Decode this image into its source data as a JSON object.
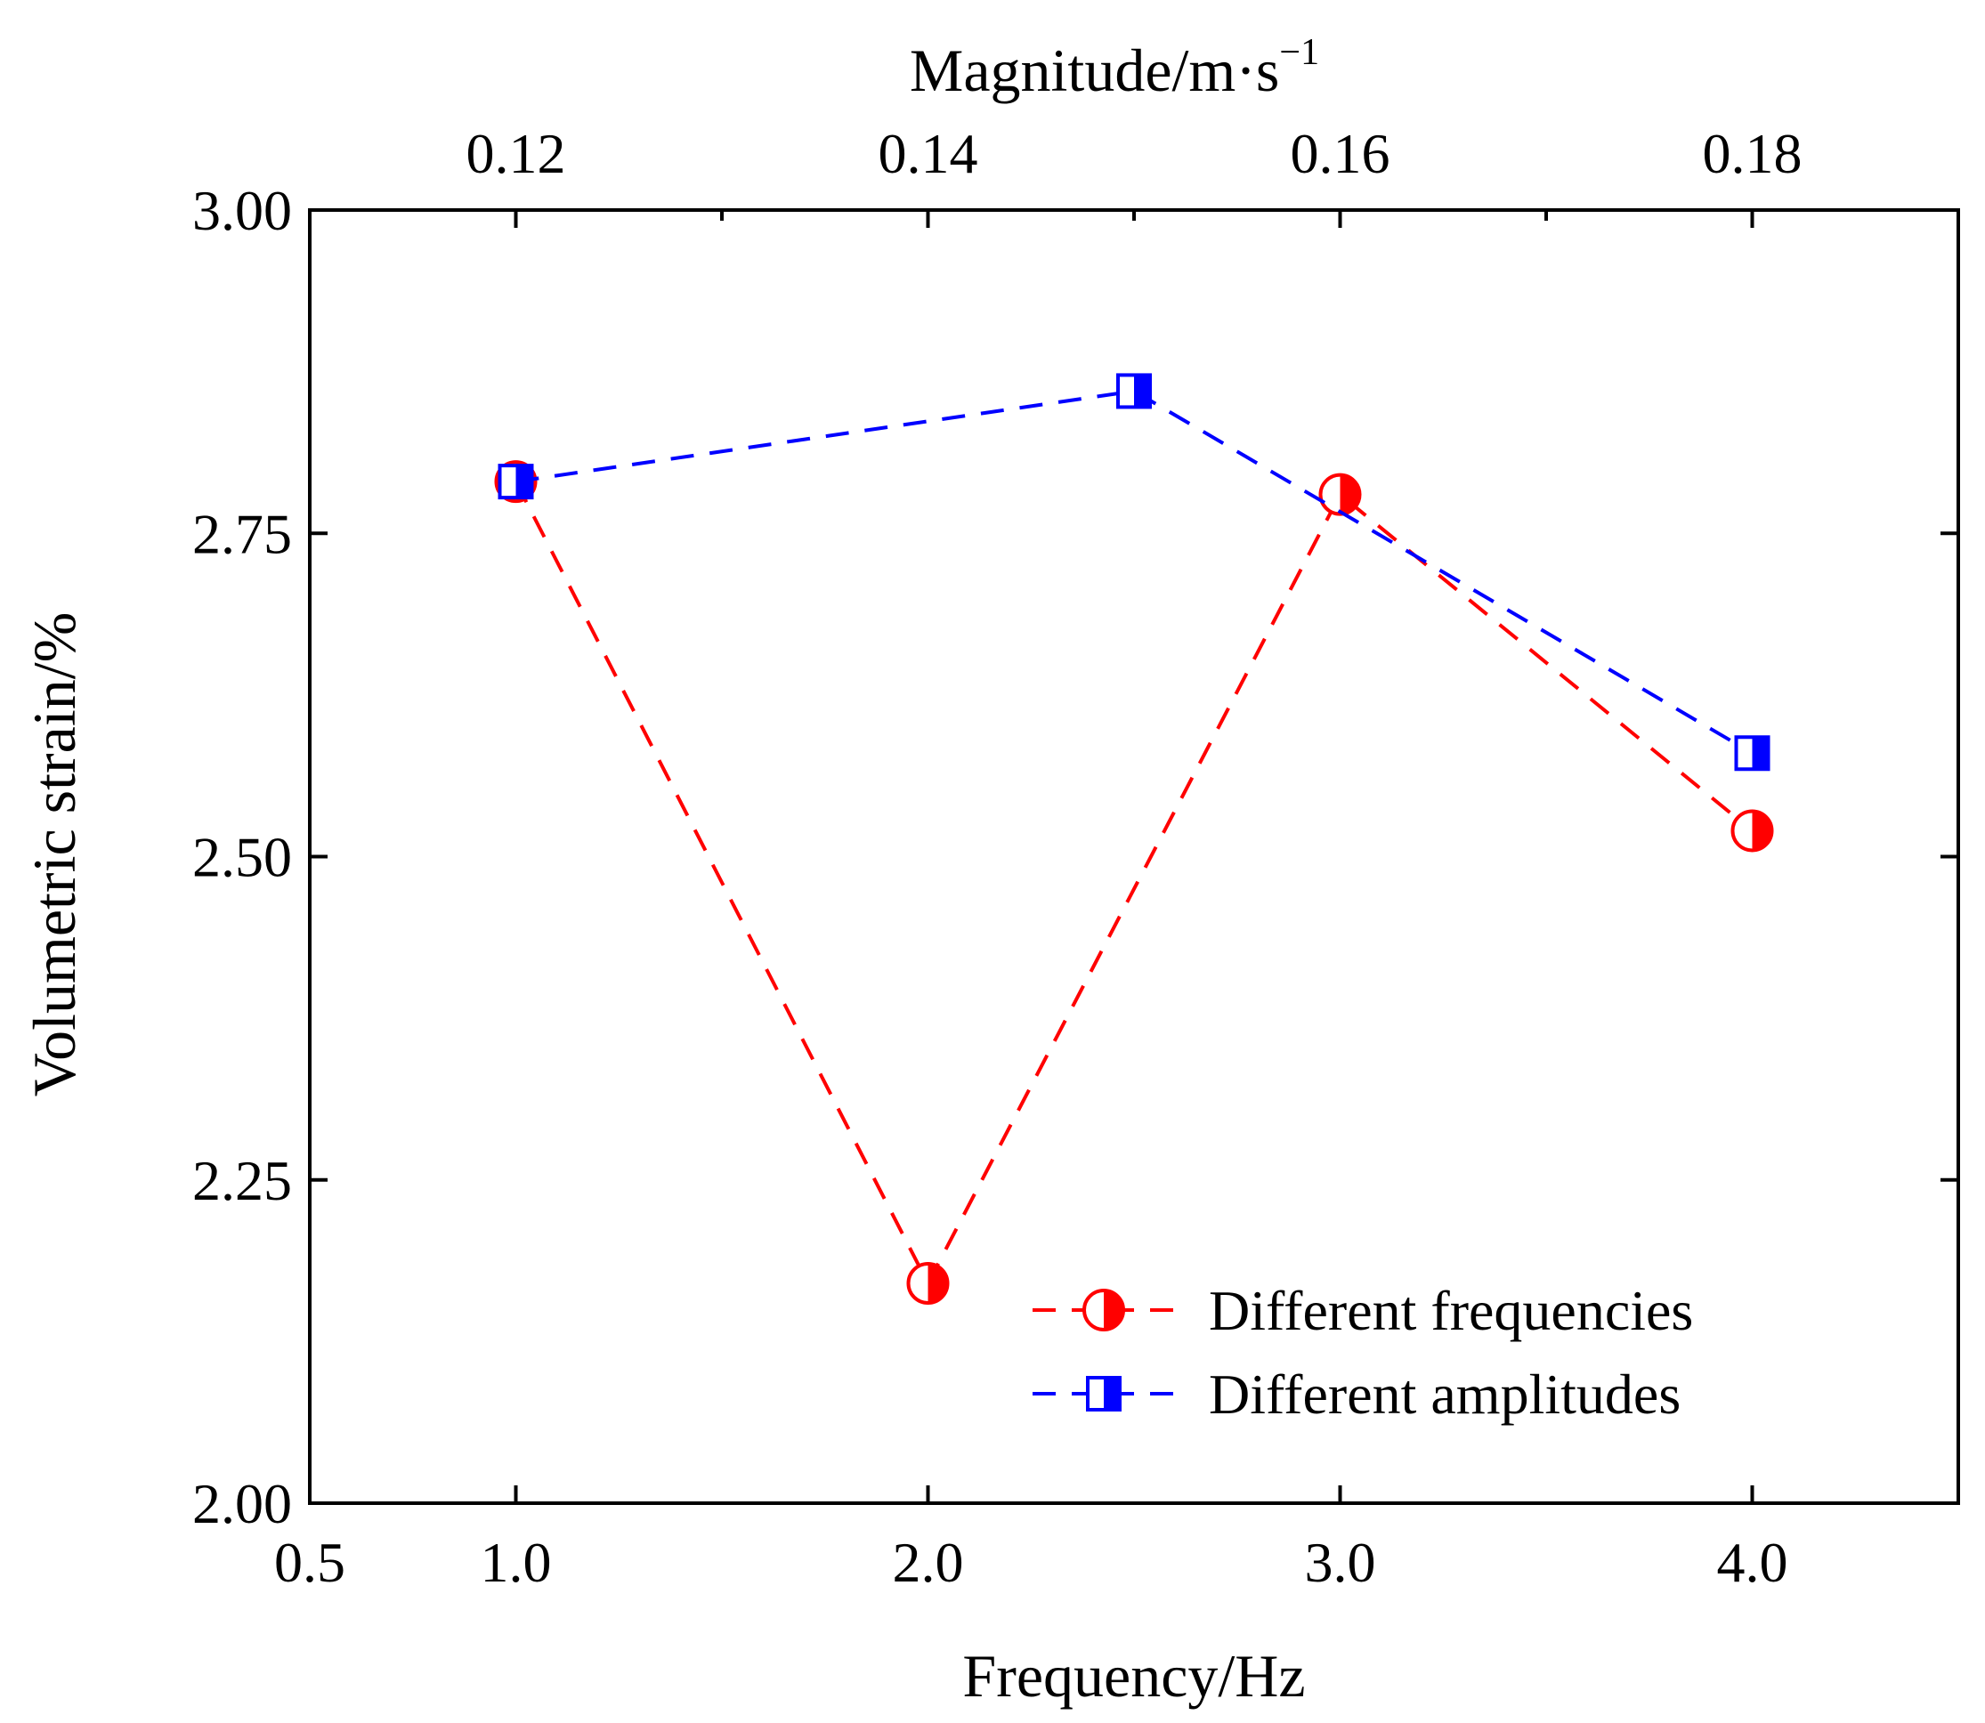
{
  "chart_data": {
    "type": "line",
    "ylabel": "Volumetric strain/%",
    "xlabel": "Frequency/Hz",
    "x2label": "Magnitude/m·s",
    "x2label_superscript": "−1",
    "xlim": [
      0.5,
      4.5
    ],
    "ylim": [
      2.0,
      3.0
    ],
    "x2lim": [
      0.11,
      0.19
    ],
    "grid": false,
    "legend_position": "bottom-right",
    "x_ticks": [
      0.5,
      1.0,
      2.0,
      3.0,
      4.0
    ],
    "x_tick_labels": [
      "0.5",
      "1.0",
      "2.0",
      "3.0",
      "4.0"
    ],
    "x2_ticks": [
      0.12,
      0.14,
      0.16,
      0.18
    ],
    "x2_tick_labels": [
      "0.12",
      "0.14",
      "0.16",
      "0.18"
    ],
    "y_ticks": [
      2.0,
      2.25,
      2.5,
      2.75,
      3.0
    ],
    "y_tick_labels": [
      "2.00",
      "2.25",
      "2.50",
      "2.75",
      "3.00"
    ],
    "series": [
      {
        "name": "Different frequencies",
        "axis": "bottom",
        "color": "#ff0000",
        "marker": "half-filled-circle",
        "x": [
          1.0,
          2.0,
          3.0,
          4.0
        ],
        "y": [
          2.79,
          2.17,
          2.78,
          2.52
        ]
      },
      {
        "name": "Different amplitudes",
        "axis": "top",
        "color": "#0000ff",
        "marker": "half-filled-square",
        "x": [
          0.12,
          0.15,
          0.18
        ],
        "y": [
          2.79,
          2.86,
          2.58
        ]
      }
    ]
  }
}
